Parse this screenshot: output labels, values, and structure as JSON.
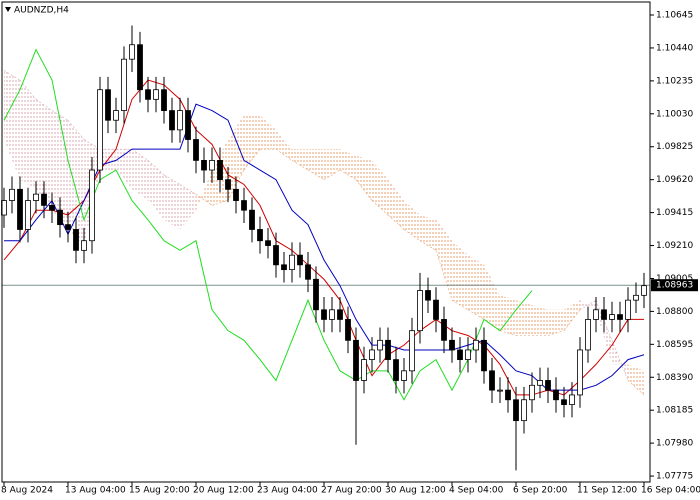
{
  "chart_data": {
    "type": "candlestick",
    "title": "AUDNZD,H4",
    "categories": [
      "8 Aug 2024",
      null,
      null,
      null,
      null,
      null,
      null,
      null,
      "13 Aug 04:00",
      null,
      null,
      null,
      null,
      null,
      null,
      null,
      "15 Aug 20:00",
      null,
      null,
      null,
      null,
      null,
      null,
      null,
      "20 Aug 12:00",
      null,
      null,
      null,
      null,
      null,
      null,
      null,
      "23 Aug 04:00",
      null,
      null,
      null,
      null,
      null,
      null,
      null,
      "27 Aug 20:00",
      null,
      null,
      null,
      null,
      null,
      null,
      null,
      "30 Aug 12:00",
      null,
      null,
      null,
      null,
      null,
      null,
      null,
      "4 Sep 04:00",
      null,
      null,
      null,
      null,
      null,
      null,
      null,
      "6 Sep 20:00",
      null,
      null,
      null,
      null,
      null,
      null,
      null,
      "11 Sep 12:00",
      null,
      null,
      null,
      null,
      null,
      null,
      null,
      "16 Sep 04:00"
    ],
    "open": [
      1.094,
      1.0949,
      1.0956,
      1.0931,
      1.0949,
      1.0953,
      1.0946,
      1.0943,
      1.0934,
      1.0931,
      1.0918,
      1.0924,
      1.0968,
      1.1018,
      1.0999,
      1.1005,
      1.1037,
      1.1046,
      1.1018,
      1.1012,
      1.1018,
      1.1005,
      1.0993,
      1.1005,
      1.0987,
      1.0974,
      1.0968,
      1.0974,
      1.0962,
      1.0956,
      1.0949,
      1.0943,
      1.0931,
      1.0924,
      1.0921,
      1.0909,
      1.0906,
      1.0915,
      1.0909,
      1.09,
      1.0881,
      1.0875,
      1.0881,
      1.0875,
      1.0862,
      1.0837,
      1.085,
      1.0856,
      1.0862,
      1.085,
      1.0837,
      1.0843,
      1.0868,
      1.0893,
      1.0887,
      1.0875,
      1.0862,
      1.0856,
      1.085,
      1.0856,
      1.0862,
      1.0843,
      1.0831,
      1.0831,
      1.0825,
      1.0812,
      1.0825,
      1.0834,
      1.0837,
      1.0831,
      1.0825,
      1.0822,
      1.0828,
      1.0856,
      1.0875,
      1.0881,
      1.0875,
      1.0878,
      1.0875,
      1.0887,
      1.089
    ],
    "high": [
      1.0957,
      1.0964,
      1.0964,
      1.0957,
      1.0961,
      1.0961,
      1.0954,
      1.0951,
      1.0942,
      1.0939,
      1.0932,
      1.0976,
      1.1026,
      1.1026,
      1.1013,
      1.1045,
      1.1058,
      1.1054,
      1.1026,
      1.1026,
      1.1026,
      1.1013,
      1.1013,
      1.1013,
      1.0995,
      1.0982,
      1.0982,
      1.0982,
      1.097,
      1.0964,
      1.0957,
      1.0951,
      1.0939,
      1.0932,
      1.0929,
      1.0917,
      1.0923,
      1.0923,
      1.0917,
      1.0908,
      1.0889,
      1.0889,
      1.0889,
      1.0883,
      1.087,
      1.0858,
      1.0864,
      1.087,
      1.087,
      1.0858,
      1.0851,
      1.0876,
      1.0904,
      1.0901,
      1.0895,
      1.0883,
      1.087,
      1.0864,
      1.0864,
      1.087,
      1.087,
      1.0851,
      1.0839,
      1.0839,
      1.0833,
      1.0833,
      1.0842,
      1.0845,
      1.0845,
      1.0839,
      1.0833,
      1.0836,
      1.0864,
      1.0883,
      1.0889,
      1.0889,
      1.0886,
      1.0886,
      1.0895,
      1.0898,
      1.0904
    ],
    "low": [
      1.0932,
      1.0941,
      1.0923,
      1.0923,
      1.0941,
      1.0938,
      1.0935,
      1.0926,
      1.0923,
      1.091,
      1.091,
      1.0916,
      1.096,
      1.0991,
      1.0991,
      1.0997,
      1.1029,
      1.101,
      1.1004,
      1.1004,
      1.0997,
      1.0985,
      1.0985,
      1.0979,
      1.0966,
      1.096,
      1.096,
      1.0954,
      1.0948,
      1.0941,
      1.0935,
      1.0923,
      1.0916,
      1.0913,
      1.0901,
      1.0898,
      1.0898,
      1.0901,
      1.0892,
      1.0873,
      1.0867,
      1.0867,
      1.0867,
      1.0854,
      1.0797,
      1.0829,
      1.0842,
      1.0848,
      1.0842,
      1.0829,
      1.0829,
      1.0835,
      1.086,
      1.0879,
      1.0867,
      1.0854,
      1.0848,
      1.0842,
      1.0842,
      1.0848,
      1.0835,
      1.0823,
      1.0823,
      1.0817,
      1.0781,
      1.0804,
      1.0817,
      1.0826,
      1.0823,
      1.0817,
      1.0814,
      1.0814,
      1.082,
      1.0848,
      1.0867,
      1.0867,
      1.0867,
      1.0867,
      1.0867,
      1.0879,
      1.0882
    ],
    "close": [
      1.0949,
      1.0956,
      1.0931,
      1.0949,
      1.0953,
      1.0946,
      1.0943,
      1.0934,
      1.0931,
      1.0918,
      1.0924,
      1.0968,
      1.1018,
      1.0999,
      1.1005,
      1.1037,
      1.1046,
      1.1018,
      1.1012,
      1.1018,
      1.1005,
      1.0993,
      1.1005,
      1.0987,
      1.0974,
      1.0968,
      1.0974,
      1.0962,
      1.0956,
      1.0949,
      1.0943,
      1.0931,
      1.0924,
      1.0921,
      1.0909,
      1.0906,
      1.0915,
      1.0909,
      1.09,
      1.0881,
      1.0875,
      1.0881,
      1.0875,
      1.0862,
      1.0837,
      1.085,
      1.0856,
      1.0862,
      1.085,
      1.0837,
      1.0843,
      1.0868,
      1.0893,
      1.0887,
      1.0875,
      1.0862,
      1.0856,
      1.085,
      1.0856,
      1.0862,
      1.0843,
      1.0831,
      1.0831,
      1.0825,
      1.0812,
      1.0825,
      1.0834,
      1.0837,
      1.0831,
      1.0825,
      1.0822,
      1.0828,
      1.0856,
      1.0875,
      1.0881,
      1.0875,
      1.0878,
      1.0875,
      1.0887,
      1.089,
      1.0896
    ],
    "up_color": "#ffffff",
    "down_color": "#000000",
    "series": [
      {
        "color": "#d00000",
        "x": [
          0,
          2,
          4,
          6,
          8,
          10,
          12,
          14,
          16,
          18,
          20,
          22,
          24,
          26,
          28,
          30,
          32,
          34,
          36,
          38,
          40,
          42,
          44,
          46,
          48,
          50,
          52,
          54,
          56,
          58,
          60,
          62,
          64,
          66,
          68,
          70,
          72,
          74,
          76,
          78,
          80
        ],
        "values": [
          1.0912,
          1.0924,
          1.0943,
          1.0943,
          1.094,
          1.0949,
          1.0968,
          1.0981,
          1.1012,
          1.1024,
          1.1021,
          1.1012,
          1.0993,
          1.0984,
          1.0965,
          1.0959,
          1.0946,
          1.0924,
          1.0918,
          1.0909,
          1.09,
          1.0887,
          1.0862,
          1.084,
          1.0853,
          1.0859,
          1.0868,
          1.0875,
          1.0868,
          1.0865,
          1.0859,
          1.0847,
          1.0828,
          1.0828,
          1.0831,
          1.0828,
          1.0837,
          1.0847,
          1.0859,
          1.0875,
          1.0875
        ]
      },
      {
        "color": "#0000c0",
        "x": [
          0,
          2,
          4,
          6,
          8,
          10,
          12,
          14,
          16,
          18,
          20,
          22,
          24,
          26,
          28,
          30,
          32,
          34,
          36,
          38,
          40,
          42,
          44,
          46,
          48,
          50,
          52,
          54,
          56,
          58,
          60,
          62,
          64,
          66,
          68,
          70,
          72,
          74,
          76,
          78,
          80
        ],
        "values": [
          1.0924,
          1.0924,
          1.0937,
          1.0949,
          1.0928,
          1.0949,
          1.0971,
          1.0974,
          1.0981,
          1.0981,
          1.0981,
          1.0981,
          1.1009,
          1.1005,
          1.0999,
          1.0974,
          1.0968,
          1.0962,
          1.0943,
          1.0934,
          1.0912,
          1.0896,
          1.0875,
          1.0859,
          1.0859,
          1.0856,
          1.0856,
          1.0856,
          1.0856,
          1.0859,
          1.0862,
          1.0853,
          1.0843,
          1.084,
          1.0831,
          1.0831,
          1.0831,
          1.0834,
          1.084,
          1.085,
          1.0853
        ]
      },
      {
        "color": "#22dd22",
        "x": [
          0,
          2,
          4,
          6,
          8,
          10,
          12,
          14,
          16,
          18,
          20,
          22,
          24,
          26,
          28,
          30,
          32,
          34,
          36,
          38,
          40,
          42,
          44,
          46,
          48,
          50,
          52,
          54,
          56,
          58,
          60,
          62,
          64,
          66
        ],
        "values": [
          1.0999,
          1.1018,
          1.1043,
          1.1024,
          1.0974,
          1.0937,
          1.0962,
          1.0968,
          1.0949,
          1.0937,
          1.0924,
          1.0918,
          1.0924,
          1.0881,
          1.0868,
          1.0862,
          1.085,
          1.0837,
          1.0862,
          1.0887,
          1.0862,
          1.0843,
          1.0837,
          1.0843,
          1.0843,
          1.0825,
          1.0843,
          1.085,
          1.0831,
          1.085,
          1.0875,
          1.0868,
          1.0881,
          1.0893
        ]
      }
    ],
    "cloud": {
      "up_color": "#d8a8b0",
      "down_color": "#e8a070",
      "x": [
        0,
        2,
        4,
        6,
        8,
        10,
        12,
        14,
        16,
        18,
        20,
        22,
        24,
        26,
        28,
        30,
        32,
        34,
        36,
        38,
        40,
        42,
        44,
        46,
        48,
        50,
        52,
        54,
        56,
        58,
        60,
        62,
        64,
        66,
        68,
        70,
        72,
        74,
        76,
        78,
        80
      ],
      "span_a": [
        1.103,
        1.1024,
        1.1012,
        1.1005,
        1.0999,
        1.0987,
        1.0981,
        1.0981,
        1.0981,
        1.0974,
        1.0965,
        1.0959,
        1.0953,
        1.0946,
        1.0949,
        1.0968,
        1.0981,
        1.0981,
        1.0974,
        1.0968,
        1.0962,
        1.0968,
        1.0962,
        1.0949,
        1.094,
        1.0931,
        1.0924,
        1.0918,
        1.0887,
        1.0881,
        1.0875,
        1.0868,
        1.0865,
        1.0865,
        1.0865,
        1.0868,
        1.0881,
        1.0887,
        1.0862,
        1.0837,
        1.0828
      ],
      "span_b": [
        1.0987,
        1.0962,
        1.0956,
        1.0943,
        1.0931,
        1.0921,
        1.0968,
        1.0968,
        1.0956,
        1.0949,
        1.0937,
        1.0931,
        1.0943,
        1.0968,
        1.0987,
        1.1002,
        1.1002,
        1.0993,
        1.0981,
        1.0981,
        1.0981,
        1.0981,
        1.0977,
        1.0974,
        1.0962,
        1.0949,
        1.094,
        1.0937,
        1.0924,
        1.0915,
        1.0909,
        1.089,
        1.0887,
        1.0884,
        1.0881,
        1.0881,
        1.0887,
        1.0881,
        1.0847,
        1.0847,
        1.0843
      ]
    },
    "current_price": 1.08963,
    "ylim": [
      1.07738,
      1.10726
    ],
    "yticks": [
      1.10645,
      {
        "value": 1.1044,
        "label": "1.10440"
      },
      1.10235,
      {
        "value": 1.1003,
        "label": "1.10030"
      },
      1.09825,
      {
        "value": 1.0962,
        "label": "1.09620"
      },
      1.09415,
      {
        "value": 1.0921,
        "label": "1.09210"
      },
      1.09005,
      {
        "value": 1.088,
        "label": "1.08800"
      },
      1.08595,
      {
        "value": 1.0839,
        "label": "1.08390"
      },
      1.08185,
      {
        "value": 1.0798,
        "label": "1.07980"
      },
      1.07775
    ],
    "grid": false
  }
}
